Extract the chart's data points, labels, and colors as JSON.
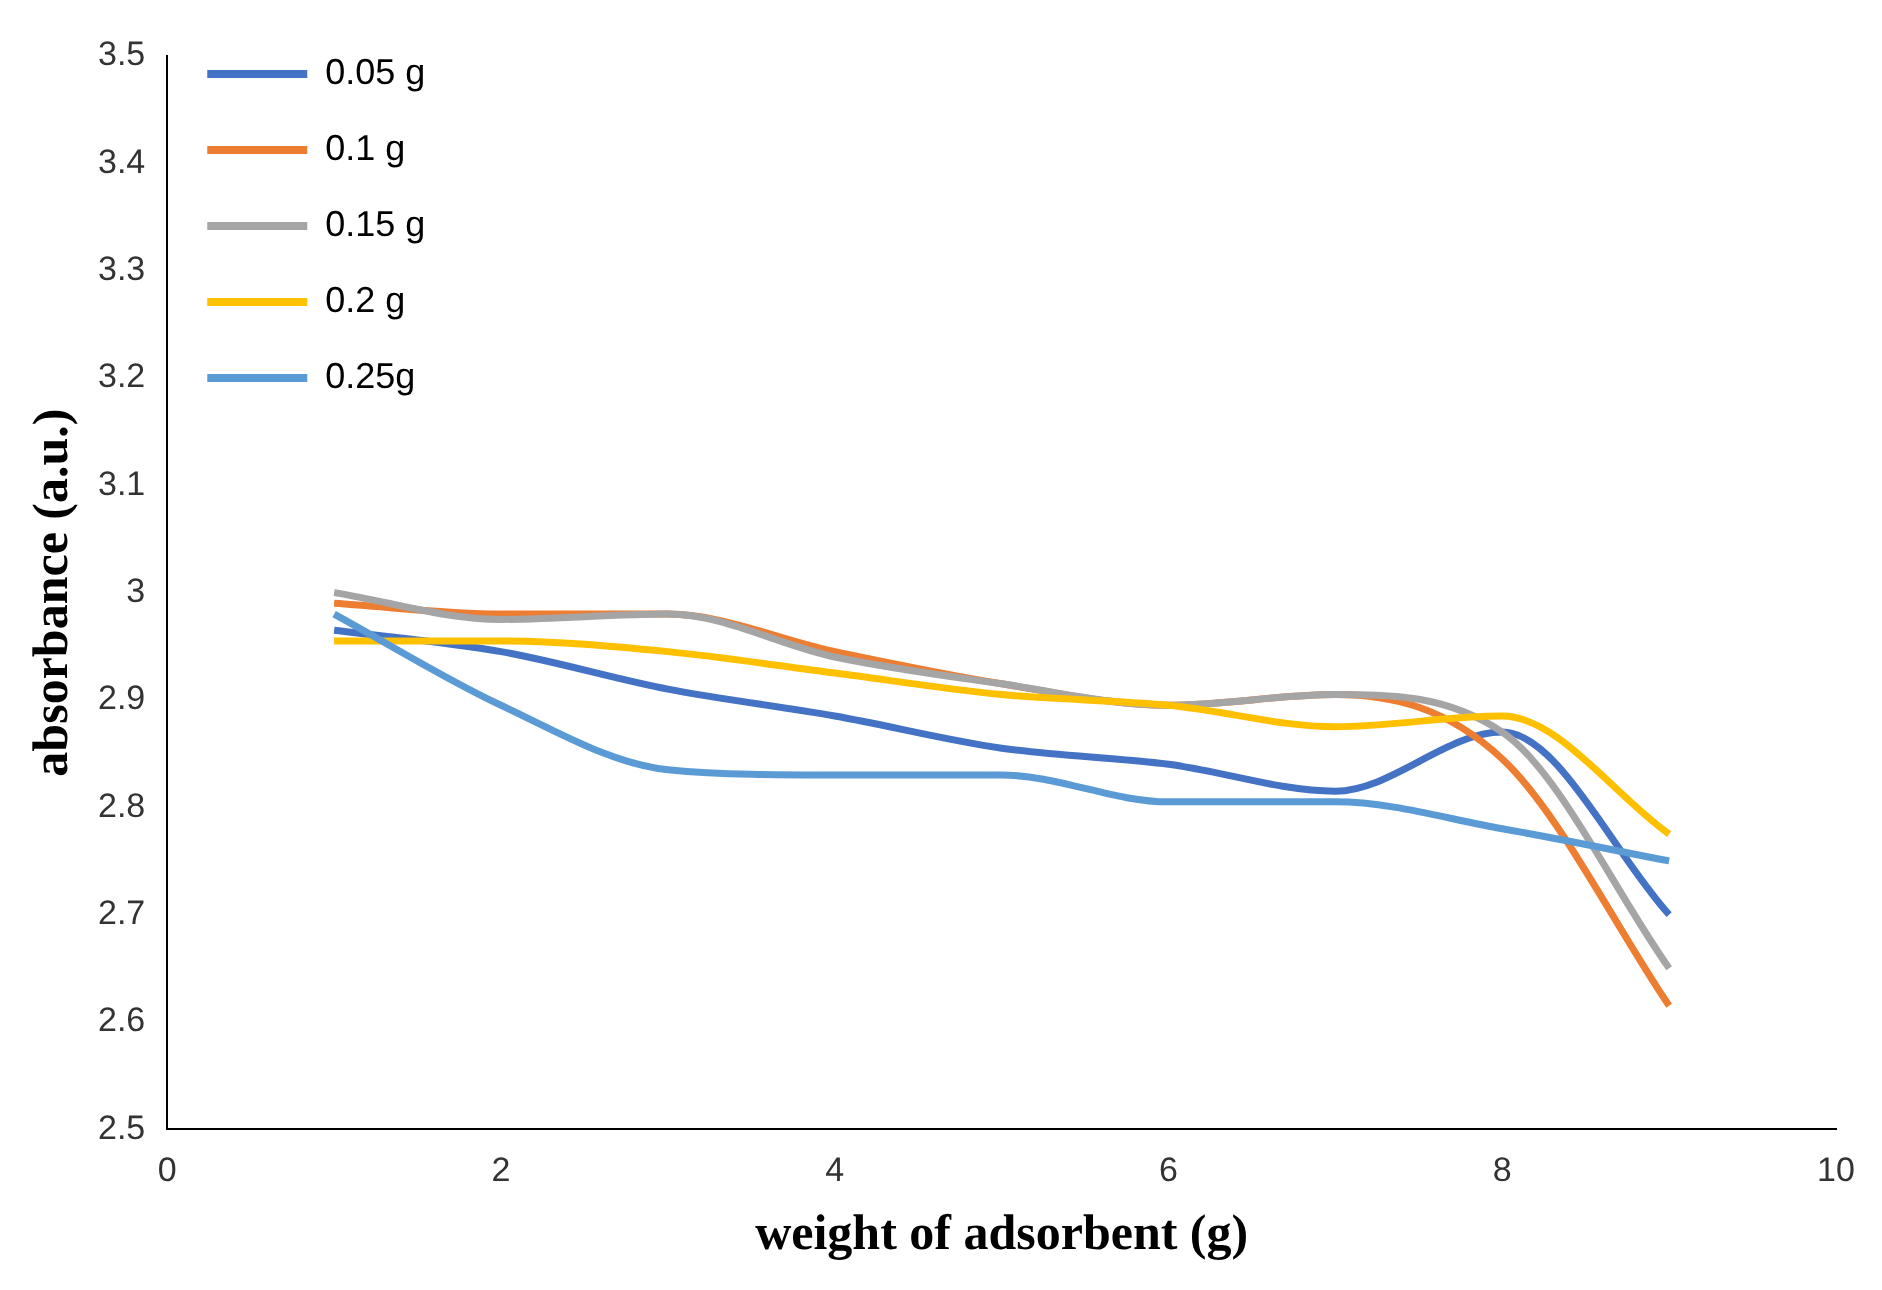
{
  "chart_data": {
    "type": "line",
    "xlabel": "weight of adsorbent (g)",
    "ylabel": "absorbance (a.u.)",
    "x": [
      1,
      2,
      3,
      4,
      5,
      6,
      7,
      8,
      9
    ],
    "series": [
      {
        "name": "0.05 g",
        "color": "#4472c4",
        "values": [
          2.965,
          2.945,
          2.91,
          2.885,
          2.855,
          2.84,
          2.815,
          2.87,
          2.7
        ]
      },
      {
        "name": "0.1 g",
        "color": "#ed7d31",
        "values": [
          2.99,
          2.98,
          2.98,
          2.945,
          2.915,
          2.895,
          2.905,
          2.845,
          2.615
        ]
      },
      {
        "name": "0.15 g",
        "color": "#a5a5a5",
        "values": [
          3.0,
          2.975,
          2.98,
          2.94,
          2.915,
          2.895,
          2.905,
          2.87,
          2.65
        ]
      },
      {
        "name": "0.2 g",
        "color": "#ffc000",
        "values": [
          2.955,
          2.955,
          2.945,
          2.925,
          2.905,
          2.895,
          2.875,
          2.885,
          2.775
        ]
      },
      {
        "name": "0.25g",
        "color": "#5b9bd5",
        "values": [
          2.98,
          2.895,
          2.835,
          2.83,
          2.83,
          2.805,
          2.805,
          2.78,
          2.75
        ]
      }
    ],
    "xlim": [
      0,
      10
    ],
    "xticks": [
      0,
      2,
      4,
      6,
      8,
      10
    ],
    "ylim": [
      2.5,
      3.5
    ],
    "yticks": [
      2.5,
      2.6,
      2.7,
      2.8,
      2.9,
      {
        "value": 3,
        "label": "3"
      },
      3.1,
      3.2,
      3.3,
      3.4,
      3.5
    ],
    "grid": false,
    "legend": "top left",
    "marker": "none",
    "line_style": "solid"
  }
}
